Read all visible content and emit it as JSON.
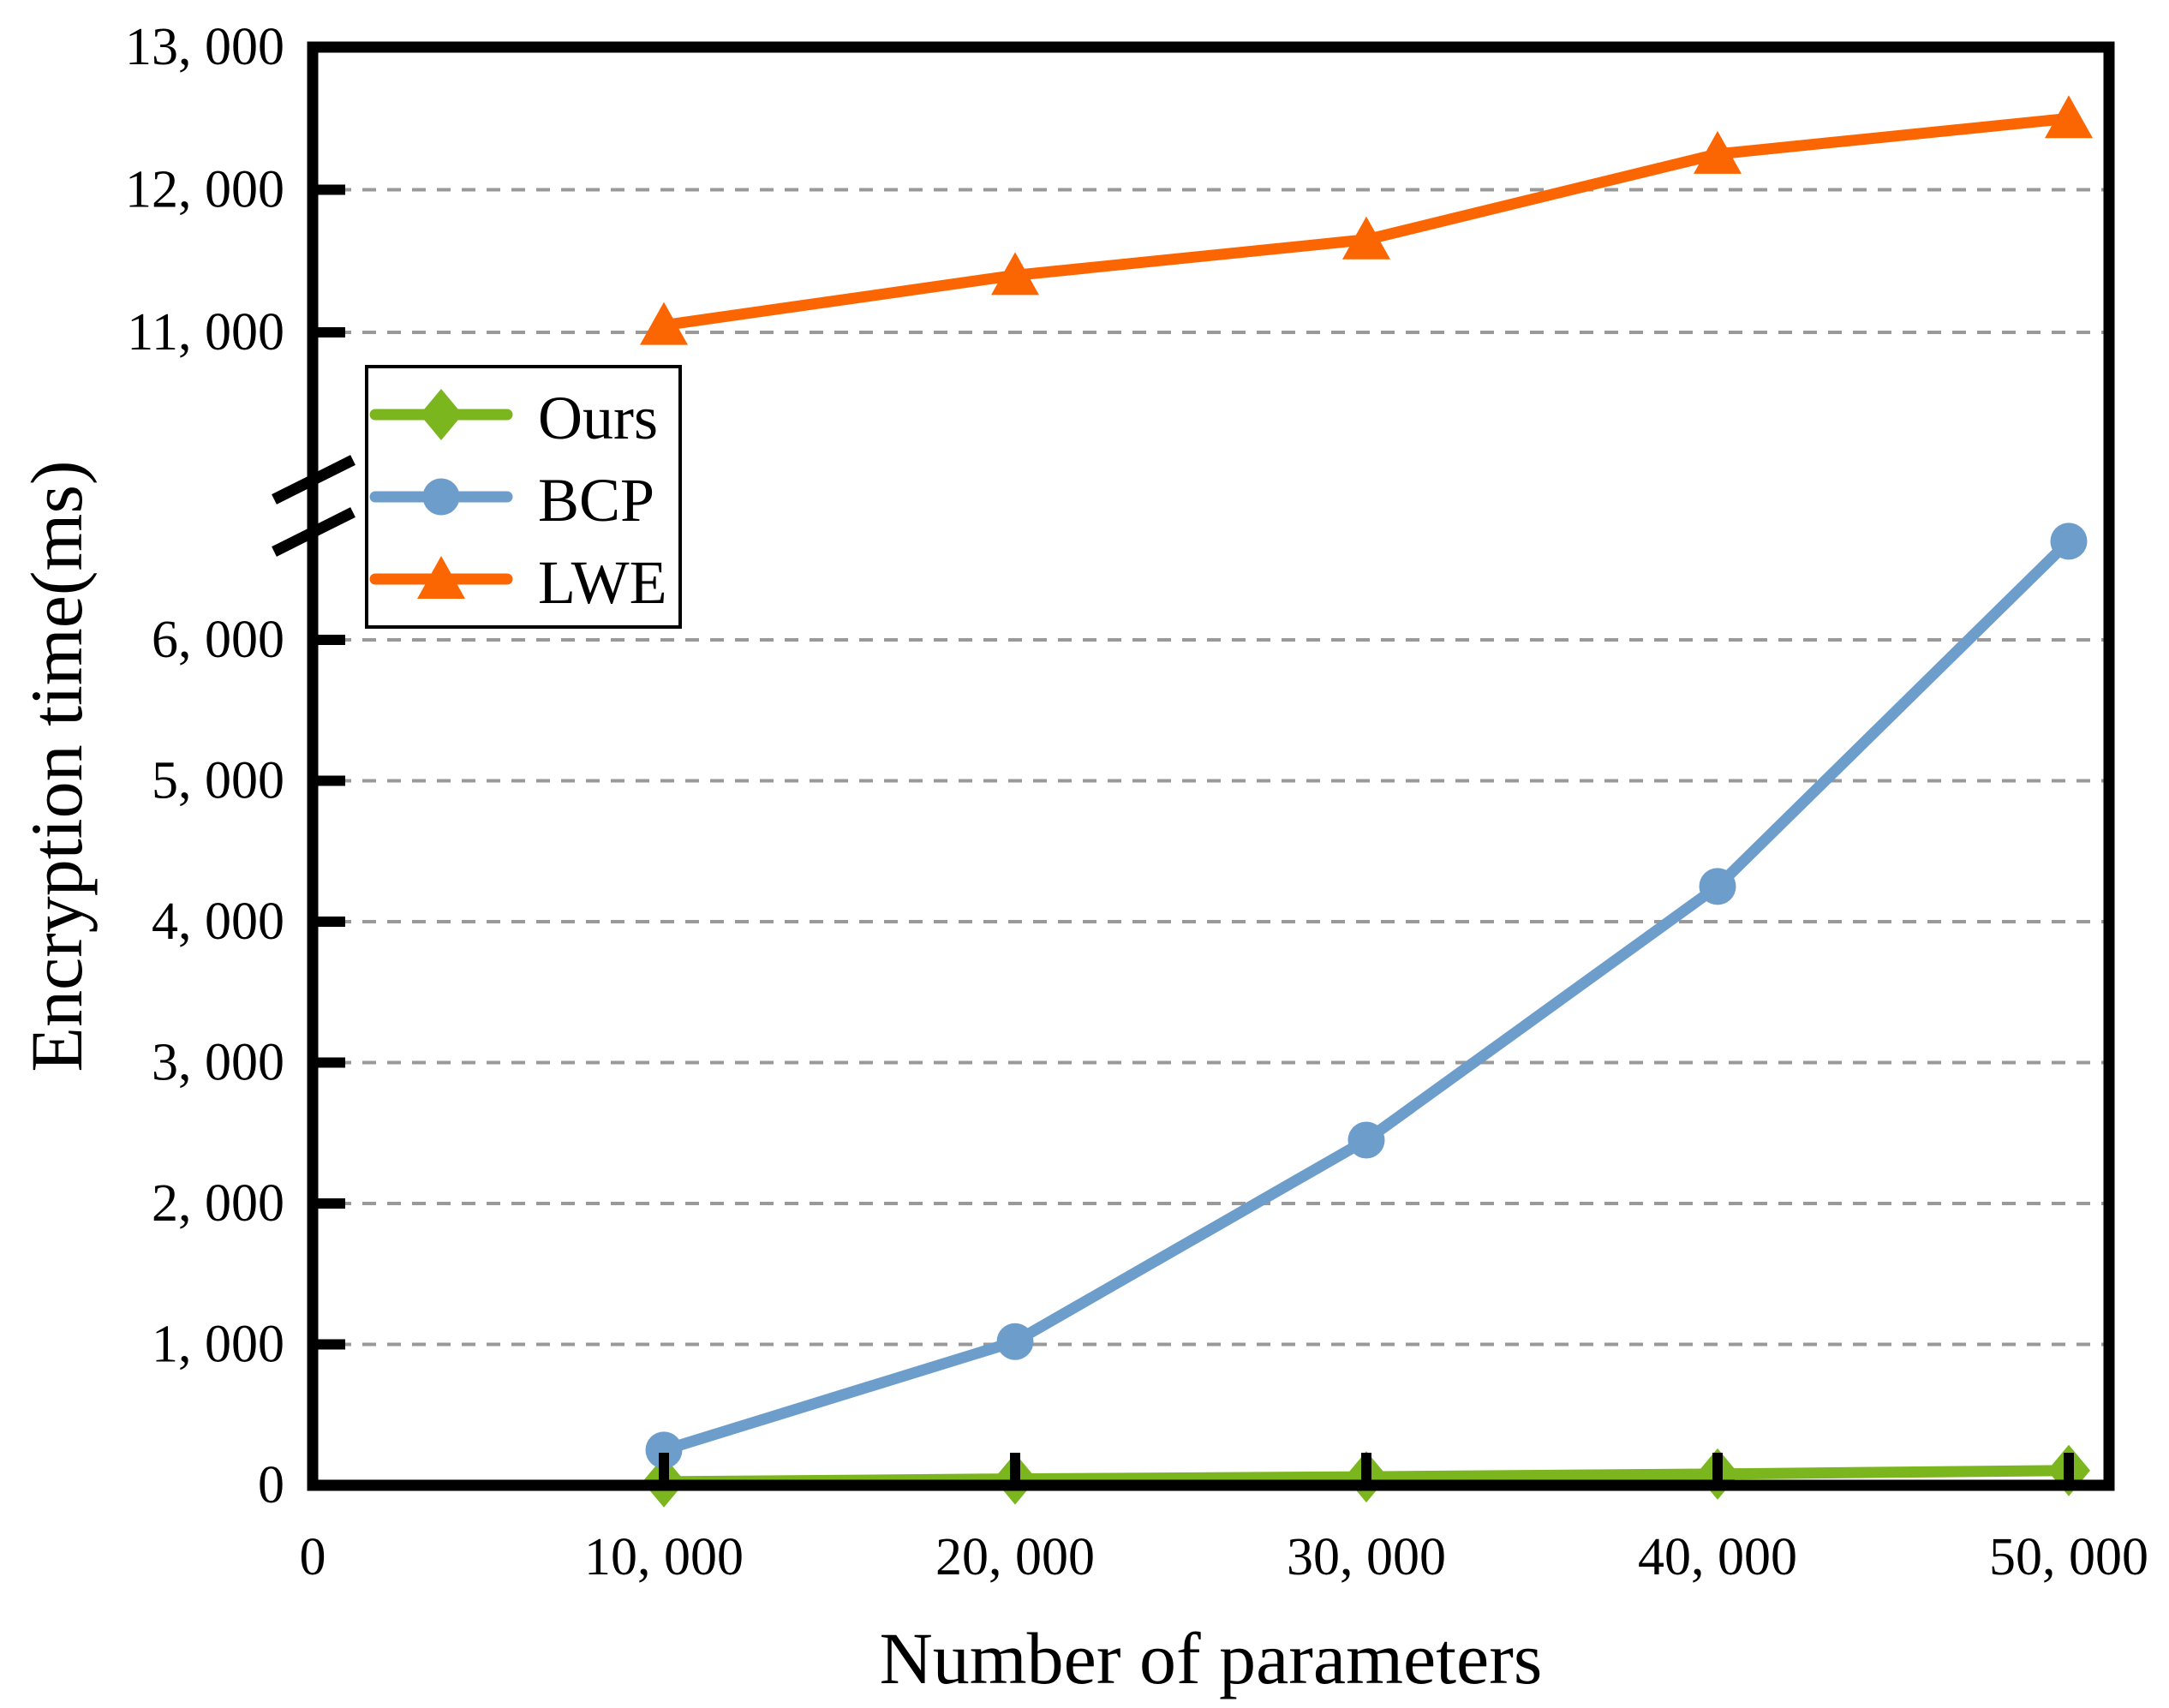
{
  "figure": {
    "background": "#ffffff",
    "x_axis": {
      "title": "Number of parameters",
      "tick_values": [
        0,
        10000,
        20000,
        30000,
        40000,
        50000
      ],
      "tick_labels": [
        "0",
        "10, 000",
        "20, 000",
        "30, 000",
        "40, 000",
        "50, 000"
      ]
    },
    "y_axis": {
      "title": "Encryption time(ms)",
      "upper_tick_values": [
        13000,
        12000,
        11000
      ],
      "upper_tick_labels": [
        "13, 000",
        "12, 000",
        "11, 000"
      ],
      "lower_tick_values": [
        6000,
        5000,
        4000,
        3000,
        2000,
        1000,
        0
      ],
      "lower_tick_labels": [
        "6, 000",
        "5, 000",
        "4, 000",
        "3, 000",
        "2, 000",
        "1, 000",
        "0"
      ],
      "has_axis_break": true
    },
    "legend": {
      "items": [
        {
          "label": "Ours",
          "marker": "diamond",
          "color": "#7CB61F"
        },
        {
          "label": "BCP",
          "marker": "circle",
          "color": "#6D9DCB"
        },
        {
          "label": "LWE",
          "marker": "triangle",
          "color": "#FB6602"
        }
      ]
    },
    "colors": {
      "axis": "#000000",
      "gridline": "#999999",
      "ours": "#7CB61F",
      "bcp": "#6D9DCB",
      "lwe": "#FB6602"
    }
  },
  "chart_data": {
    "type": "line",
    "title": "",
    "xlabel": "Number of parameters",
    "ylabel": "Encryption time(ms)",
    "x": [
      10000,
      20000,
      30000,
      40000,
      50000
    ],
    "series": [
      {
        "name": "Ours",
        "marker": "diamond",
        "color": "#7CB61F",
        "values": [
          25,
          45,
          60,
          80,
          105
        ]
      },
      {
        "name": "BCP",
        "marker": "circle",
        "color": "#6D9DCB",
        "values": [
          250,
          1020,
          2450,
          4250,
          6700
        ]
      },
      {
        "name": "LWE",
        "marker": "triangle",
        "color": "#FB6602",
        "values": [
          11050,
          11400,
          11650,
          12250,
          12500
        ]
      }
    ],
    "gridline_values": [
      1000,
      2000,
      3000,
      4000,
      5000,
      6000,
      11000,
      12000
    ],
    "grid": "horizontal dashed",
    "legend_position": "upper-left-inside",
    "axis_break": {
      "lower_section_max": 6700,
      "upper_section_min": 10800
    },
    "xlim": [
      0,
      51200
    ],
    "ylim_lower": [
      0,
      6700
    ],
    "ylim_upper": [
      10800,
      13000
    ]
  }
}
